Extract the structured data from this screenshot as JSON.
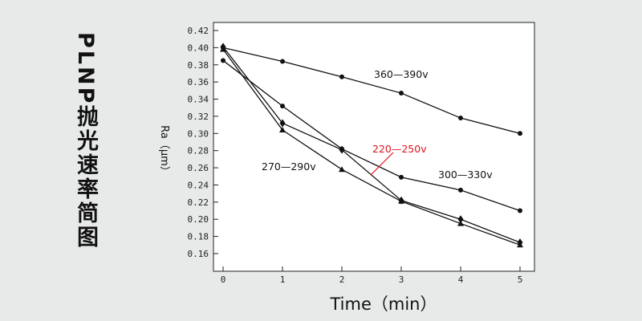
{
  "page_title": "PLNP抛光速率简图",
  "chart_data": {
    "type": "line",
    "title": "",
    "xlabel": "Time（min）",
    "ylabel": "Ra（μm）",
    "xlim": [
      0,
      5
    ],
    "ylim": [
      0.16,
      0.42
    ],
    "x_ticks": [
      "0",
      "1",
      "2",
      "3",
      "4",
      "5"
    ],
    "y_ticks": [
      "0.16",
      "0.18",
      "0.20",
      "0.22",
      "0.24",
      "0.26",
      "0.28",
      "0.30",
      "0.32",
      "0.34",
      "0.36",
      "0.38",
      "0.40",
      "0.42"
    ],
    "grid": false,
    "x": [
      0,
      1,
      2,
      3,
      4,
      5
    ],
    "series": [
      {
        "name": "360—390v",
        "values": [
          0.4,
          0.384,
          0.366,
          0.347,
          0.318,
          0.3
        ],
        "marker": "circle",
        "color": "#111111"
      },
      {
        "name": "300—330v",
        "values": [
          0.385,
          0.332,
          0.282,
          0.249,
          0.234,
          0.21
        ],
        "marker": "circle",
        "color": "#111111"
      },
      {
        "name": "220—250v",
        "values": [
          0.401,
          0.312,
          0.281,
          0.222,
          0.2,
          0.173
        ],
        "marker": "diamond",
        "color": "#111111"
      },
      {
        "name": "270—290v",
        "values": [
          0.398,
          0.304,
          0.258,
          0.221,
          0.195,
          0.17
        ],
        "marker": "triangle",
        "color": "#111111"
      }
    ],
    "annotations": [
      {
        "text": "360—390v",
        "color": "#111111"
      },
      {
        "text": "300—330v",
        "color": "#111111"
      },
      {
        "text": "220—250v",
        "color": "#e0141e"
      },
      {
        "text": "270—290v",
        "color": "#111111"
      }
    ]
  }
}
